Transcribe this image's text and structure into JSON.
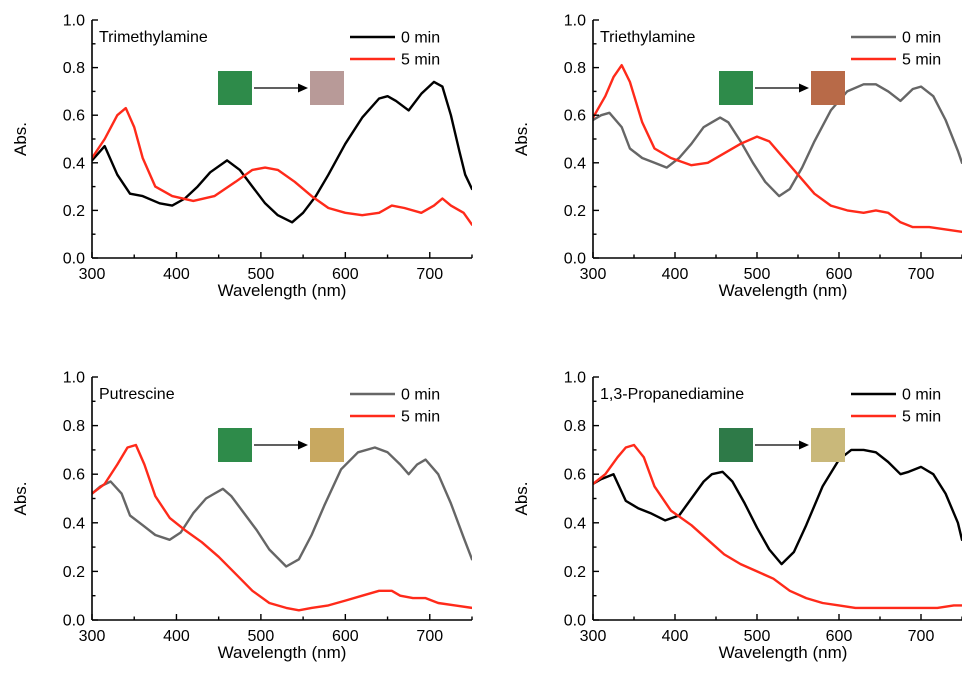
{
  "figure": {
    "x_ticks": [
      "300",
      "400",
      "500",
      "600",
      "700"
    ],
    "y_ticks": [
      "0.0",
      "0.2",
      "0.4",
      "0.6",
      "0.8",
      "1.0"
    ]
  },
  "chart_data": [
    {
      "type": "line",
      "title": "Trimethylamine",
      "xlabel": "Wavelength (nm)",
      "ylabel": "Abs.",
      "xlim": [
        300,
        750
      ],
      "ylim": [
        0,
        1.0
      ],
      "legend_placement": "top-right",
      "swatches": {
        "before": "#2e8b4a",
        "after": "#b89a98"
      },
      "series": [
        {
          "name": "0 min",
          "color": "#000000",
          "x": [
            300,
            315,
            330,
            345,
            360,
            380,
            395,
            410,
            425,
            440,
            460,
            475,
            490,
            505,
            520,
            537,
            550,
            565,
            580,
            600,
            620,
            640,
            650,
            660,
            675,
            690,
            705,
            715,
            725,
            735,
            742,
            750
          ],
          "y": [
            0.41,
            0.47,
            0.35,
            0.27,
            0.26,
            0.23,
            0.22,
            0.25,
            0.3,
            0.36,
            0.41,
            0.37,
            0.3,
            0.23,
            0.18,
            0.15,
            0.19,
            0.26,
            0.35,
            0.48,
            0.59,
            0.67,
            0.68,
            0.66,
            0.62,
            0.69,
            0.74,
            0.72,
            0.6,
            0.45,
            0.35,
            0.29
          ]
        },
        {
          "name": "5 min",
          "color": "#ff2a1a",
          "x": [
            300,
            315,
            330,
            340,
            350,
            360,
            375,
            395,
            420,
            445,
            470,
            490,
            505,
            520,
            540,
            560,
            580,
            600,
            620,
            640,
            655,
            670,
            690,
            705,
            715,
            725,
            740,
            750
          ],
          "y": [
            0.42,
            0.5,
            0.6,
            0.63,
            0.55,
            0.42,
            0.3,
            0.26,
            0.24,
            0.26,
            0.32,
            0.37,
            0.38,
            0.37,
            0.32,
            0.26,
            0.21,
            0.19,
            0.18,
            0.19,
            0.22,
            0.21,
            0.19,
            0.22,
            0.25,
            0.22,
            0.19,
            0.14
          ]
        }
      ]
    },
    {
      "type": "line",
      "title": "Triethylamine",
      "xlabel": "Wavelength (nm)",
      "ylabel": "Abs.",
      "xlim": [
        300,
        750
      ],
      "ylim": [
        0,
        1.0
      ],
      "legend_placement": "top-right",
      "swatches": {
        "before": "#2e8b4a",
        "after": "#b86a48"
      },
      "series": [
        {
          "name": "0 min",
          "color": "#666666",
          "x": [
            300,
            310,
            320,
            335,
            345,
            360,
            375,
            390,
            405,
            420,
            435,
            445,
            455,
            465,
            480,
            495,
            510,
            527,
            540,
            555,
            570,
            590,
            610,
            630,
            645,
            660,
            675,
            690,
            700,
            715,
            730,
            745,
            750
          ],
          "y": [
            0.58,
            0.6,
            0.61,
            0.55,
            0.46,
            0.42,
            0.4,
            0.38,
            0.42,
            0.48,
            0.55,
            0.57,
            0.59,
            0.57,
            0.49,
            0.4,
            0.32,
            0.26,
            0.29,
            0.38,
            0.49,
            0.62,
            0.7,
            0.73,
            0.73,
            0.7,
            0.66,
            0.71,
            0.72,
            0.68,
            0.58,
            0.45,
            0.4
          ]
        },
        {
          "name": "5 min",
          "color": "#ff2a1a",
          "x": [
            300,
            315,
            325,
            335,
            345,
            360,
            375,
            395,
            420,
            440,
            460,
            480,
            500,
            515,
            530,
            550,
            570,
            590,
            610,
            630,
            645,
            660,
            675,
            690,
            710,
            730,
            750
          ],
          "y": [
            0.59,
            0.68,
            0.76,
            0.81,
            0.74,
            0.57,
            0.46,
            0.42,
            0.39,
            0.4,
            0.44,
            0.48,
            0.51,
            0.49,
            0.43,
            0.35,
            0.27,
            0.22,
            0.2,
            0.19,
            0.2,
            0.19,
            0.15,
            0.13,
            0.13,
            0.12,
            0.11
          ]
        }
      ]
    },
    {
      "type": "line",
      "title": "Putrescine",
      "xlabel": "Wavelength (nm)",
      "ylabel": "Abs.",
      "xlim": [
        300,
        750
      ],
      "ylim": [
        0,
        1.0
      ],
      "legend_placement": "top-right",
      "swatches": {
        "before": "#2e8b4a",
        "after": "#c8a860"
      },
      "series": [
        {
          "name": "0 min",
          "color": "#666666",
          "x": [
            300,
            310,
            322,
            335,
            345,
            360,
            375,
            392,
            405,
            420,
            435,
            445,
            455,
            465,
            480,
            495,
            510,
            530,
            545,
            560,
            575,
            595,
            615,
            635,
            650,
            665,
            675,
            685,
            695,
            710,
            725,
            740,
            750
          ],
          "y": [
            0.52,
            0.55,
            0.57,
            0.52,
            0.43,
            0.39,
            0.35,
            0.33,
            0.36,
            0.44,
            0.5,
            0.52,
            0.54,
            0.51,
            0.44,
            0.37,
            0.29,
            0.22,
            0.25,
            0.35,
            0.47,
            0.62,
            0.69,
            0.71,
            0.69,
            0.64,
            0.6,
            0.64,
            0.66,
            0.6,
            0.48,
            0.34,
            0.25
          ]
        },
        {
          "name": "5 min",
          "color": "#ff2a1a",
          "x": [
            300,
            315,
            330,
            342,
            352,
            362,
            375,
            392,
            410,
            430,
            450,
            470,
            490,
            510,
            530,
            545,
            560,
            580,
            600,
            620,
            640,
            655,
            665,
            680,
            695,
            710,
            730,
            750
          ],
          "y": [
            0.52,
            0.56,
            0.64,
            0.71,
            0.72,
            0.64,
            0.51,
            0.42,
            0.37,
            0.32,
            0.26,
            0.19,
            0.12,
            0.07,
            0.05,
            0.04,
            0.05,
            0.06,
            0.08,
            0.1,
            0.12,
            0.12,
            0.1,
            0.09,
            0.09,
            0.07,
            0.06,
            0.05
          ]
        }
      ]
    },
    {
      "type": "line",
      "title": "1,3-Propanediamine",
      "xlabel": "Wavelength (nm)",
      "ylabel": "Abs.",
      "xlim": [
        300,
        750
      ],
      "ylim": [
        0,
        1.0
      ],
      "legend_placement": "top-right",
      "swatches": {
        "before": "#2e7a48",
        "after": "#c9b87a"
      },
      "series": [
        {
          "name": "0 min",
          "color": "#000000",
          "x": [
            300,
            310,
            325,
            340,
            355,
            370,
            388,
            405,
            420,
            435,
            445,
            458,
            470,
            485,
            500,
            515,
            530,
            545,
            560,
            580,
            600,
            615,
            630,
            645,
            660,
            675,
            685,
            700,
            715,
            730,
            745,
            750
          ],
          "y": [
            0.56,
            0.58,
            0.6,
            0.49,
            0.46,
            0.44,
            0.41,
            0.43,
            0.5,
            0.57,
            0.6,
            0.61,
            0.57,
            0.48,
            0.38,
            0.29,
            0.23,
            0.28,
            0.39,
            0.55,
            0.66,
            0.7,
            0.7,
            0.69,
            0.65,
            0.6,
            0.61,
            0.63,
            0.6,
            0.52,
            0.4,
            0.33
          ]
        },
        {
          "name": "5 min",
          "color": "#ff2a1a",
          "x": [
            300,
            315,
            330,
            340,
            350,
            362,
            375,
            395,
            420,
            440,
            460,
            480,
            500,
            520,
            540,
            560,
            580,
            600,
            620,
            640,
            660,
            680,
            700,
            720,
            740,
            750
          ],
          "y": [
            0.56,
            0.6,
            0.67,
            0.71,
            0.72,
            0.67,
            0.55,
            0.45,
            0.39,
            0.33,
            0.27,
            0.23,
            0.2,
            0.17,
            0.12,
            0.09,
            0.07,
            0.06,
            0.05,
            0.05,
            0.05,
            0.05,
            0.05,
            0.05,
            0.06,
            0.06
          ]
        }
      ]
    }
  ]
}
